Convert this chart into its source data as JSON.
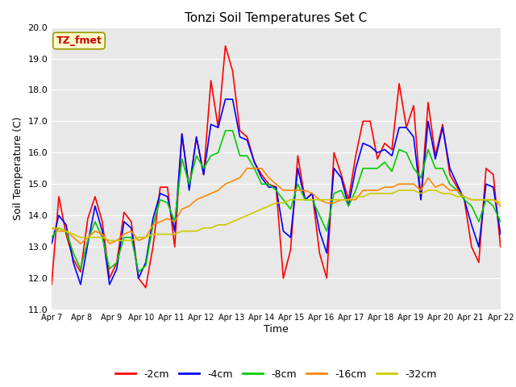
{
  "title": "Tonzi Soil Temperatures Set C",
  "xlabel": "Time",
  "ylabel": "Soil Temperature (C)",
  "ylim": [
    11.0,
    20.0
  ],
  "yticks": [
    11.0,
    12.0,
    13.0,
    14.0,
    15.0,
    16.0,
    17.0,
    18.0,
    19.0,
    20.0
  ],
  "x_labels": [
    "Apr 7",
    "Apr 8",
    "Apr 9",
    "Apr 10",
    "Apr 11",
    "Apr 12",
    "Apr 13",
    "Apr 14",
    "Apr 15",
    "Apr 16",
    "Apr 17",
    "Apr 18",
    "Apr 19",
    "Apr 20",
    "Apr 21",
    "Apr 22"
  ],
  "annotation_text": "TZ_fmet",
  "annotation_color": "#cc0000",
  "annotation_bg": "#ffffcc",
  "annotation_border": "#999900",
  "bg_color": "#e8e8e8",
  "grid_color": "#ffffff",
  "line_order": [
    "-2cm",
    "-4cm",
    "-8cm",
    "-16cm",
    "-32cm"
  ],
  "lines": {
    "-2cm": {
      "color": "#ff0000",
      "y": [
        11.8,
        14.6,
        13.4,
        12.6,
        12.2,
        13.9,
        14.6,
        13.8,
        12.0,
        12.5,
        14.1,
        13.8,
        12.0,
        11.7,
        13.0,
        14.9,
        14.9,
        13.0,
        16.6,
        14.9,
        16.5,
        15.3,
        18.3,
        16.8,
        19.4,
        18.6,
        16.7,
        16.5,
        15.7,
        15.3,
        15.0,
        14.9,
        12.0,
        12.9,
        15.9,
        14.5,
        14.7,
        12.8,
        12.0,
        16.0,
        15.3,
        14.5,
        15.9,
        17.0,
        17.0,
        15.8,
        16.3,
        16.1,
        18.2,
        16.8,
        17.5,
        14.5,
        17.6,
        15.9,
        16.9,
        15.3,
        14.9,
        14.5,
        13.0,
        12.5,
        15.5,
        15.3,
        13.0
      ]
    },
    "-4cm": {
      "color": "#0000ff",
      "y": [
        13.1,
        14.0,
        13.7,
        12.5,
        11.8,
        13.1,
        14.3,
        13.5,
        11.8,
        12.3,
        13.8,
        13.6,
        12.0,
        12.5,
        13.9,
        14.7,
        14.6,
        13.5,
        16.6,
        14.8,
        16.5,
        15.3,
        16.9,
        16.8,
        17.7,
        17.7,
        16.5,
        16.4,
        15.7,
        15.2,
        14.9,
        14.9,
        13.5,
        13.3,
        15.5,
        14.5,
        14.7,
        13.5,
        12.8,
        15.5,
        15.2,
        14.3,
        15.5,
        16.3,
        16.2,
        16.0,
        16.1,
        15.9,
        16.8,
        16.8,
        16.5,
        14.5,
        17.0,
        15.8,
        16.8,
        15.5,
        15.0,
        14.5,
        13.7,
        13.0,
        15.0,
        14.9,
        13.4
      ]
    },
    "-8cm": {
      "color": "#00cc00",
      "y": [
        13.3,
        13.6,
        13.5,
        12.8,
        12.3,
        13.2,
        13.8,
        13.3,
        12.3,
        12.5,
        13.3,
        13.3,
        12.2,
        12.4,
        13.7,
        14.5,
        14.4,
        13.8,
        15.8,
        15.0,
        15.9,
        15.5,
        15.9,
        16.0,
        16.7,
        16.7,
        15.9,
        15.9,
        15.5,
        15.0,
        15.0,
        14.8,
        14.5,
        14.2,
        15.0,
        14.5,
        14.5,
        14.0,
        13.5,
        14.7,
        14.8,
        14.3,
        14.8,
        15.5,
        15.5,
        15.5,
        15.7,
        15.4,
        16.1,
        16.0,
        15.5,
        15.2,
        16.1,
        15.5,
        15.5,
        15.0,
        14.8,
        14.5,
        14.3,
        13.8,
        14.5,
        14.3,
        13.8
      ]
    },
    "-16cm": {
      "color": "#ff8800",
      "y": [
        13.6,
        13.5,
        13.5,
        13.3,
        13.1,
        13.3,
        13.5,
        13.4,
        13.1,
        13.2,
        13.4,
        13.5,
        13.2,
        13.3,
        13.7,
        13.8,
        13.9,
        13.8,
        14.2,
        14.3,
        14.5,
        14.6,
        14.7,
        14.8,
        15.0,
        15.1,
        15.2,
        15.5,
        15.5,
        15.5,
        15.2,
        15.0,
        14.8,
        14.8,
        14.8,
        14.8,
        14.7,
        14.5,
        14.4,
        14.4,
        14.5,
        14.5,
        14.5,
        14.8,
        14.8,
        14.8,
        14.9,
        14.9,
        15.0,
        15.0,
        15.0,
        14.8,
        15.2,
        14.9,
        15.0,
        14.8,
        14.8,
        14.6,
        14.5,
        14.5,
        14.5,
        14.5,
        14.3
      ]
    },
    "-32cm": {
      "color": "#cccc00",
      "y": [
        13.6,
        13.6,
        13.5,
        13.4,
        13.3,
        13.3,
        13.3,
        13.3,
        13.2,
        13.2,
        13.2,
        13.2,
        13.3,
        13.3,
        13.4,
        13.4,
        13.4,
        13.4,
        13.5,
        13.5,
        13.5,
        13.6,
        13.6,
        13.7,
        13.7,
        13.8,
        13.9,
        14.0,
        14.1,
        14.2,
        14.3,
        14.4,
        14.4,
        14.5,
        14.5,
        14.5,
        14.5,
        14.5,
        14.5,
        14.5,
        14.5,
        14.5,
        14.6,
        14.6,
        14.7,
        14.7,
        14.7,
        14.7,
        14.8,
        14.8,
        14.8,
        14.7,
        14.8,
        14.8,
        14.7,
        14.7,
        14.6,
        14.6,
        14.5,
        14.5,
        14.5,
        14.5,
        14.4
      ]
    }
  }
}
